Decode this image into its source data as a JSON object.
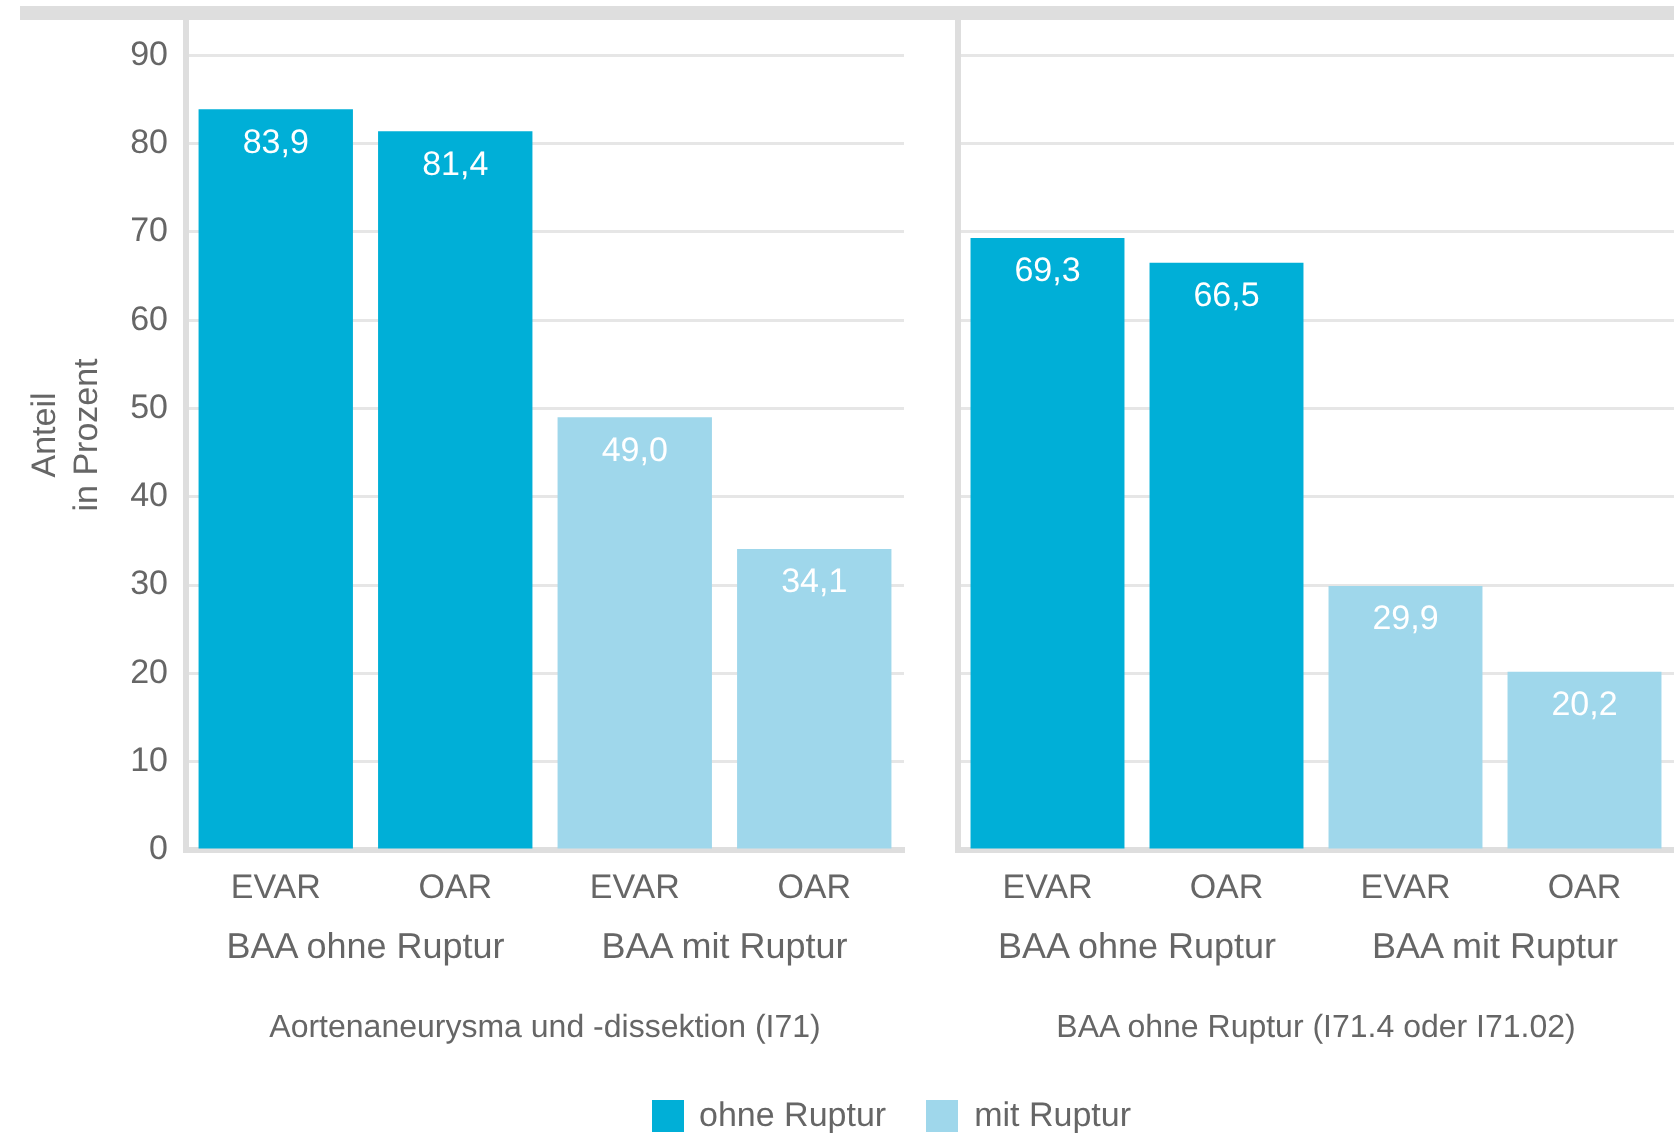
{
  "chart_data": [
    {
      "type": "bar",
      "categories": [
        "EVAR",
        "OAR",
        "EVAR",
        "OAR"
      ],
      "series": [
        {
          "name": "ohne Ruptur",
          "color": "#00afd7",
          "values": [
            83.9,
            81.4,
            null,
            null
          ],
          "value_labels": [
            "83,9",
            "81,4",
            null,
            null
          ]
        },
        {
          "name": "mit Ruptur",
          "color": "#9fd7eb",
          "values": [
            null,
            null,
            49.0,
            34.1
          ],
          "value_labels": [
            null,
            null,
            "49,0",
            "34,1"
          ]
        }
      ],
      "xlabel": "Aortenaneurysma und -dissektion (I71)",
      "ylabel": "Anteil in Prozent",
      "annotations": [
        "BAA ohne Ruptur",
        "BAA mit Ruptur"
      ],
      "ylim": [
        0,
        94
      ],
      "yticks": [
        0,
        10,
        20,
        30,
        40,
        50,
        60,
        70,
        80,
        90
      ],
      "grid": "y",
      "legend": "bottom"
    },
    {
      "type": "bar",
      "categories": [
        "EVAR",
        "OAR",
        "EVAR",
        "OAR"
      ],
      "series": [
        {
          "color": "#00afd7",
          "values": [
            69.3,
            66.5,
            null,
            null
          ],
          "value_labels": [
            "69,3",
            "66,5",
            null,
            null
          ]
        },
        {
          "color": "#9fd7eb",
          "values": [
            null,
            null,
            29.9,
            20.2
          ],
          "value_labels": [
            null,
            null,
            "29,9",
            "20,2"
          ]
        }
      ],
      "xlabel": "BAA ohne Ruptur (I71.4 oder I71.02)",
      "annotations": [
        "BAA ohne Ruptur",
        "BAA mit Ruptur"
      ],
      "ylim": [
        0,
        94
      ],
      "yticks": [
        0,
        10,
        20,
        30,
        40,
        50,
        60,
        70,
        80,
        90
      ],
      "grid": "y",
      "tick_labels": "x"
    }
  ]
}
